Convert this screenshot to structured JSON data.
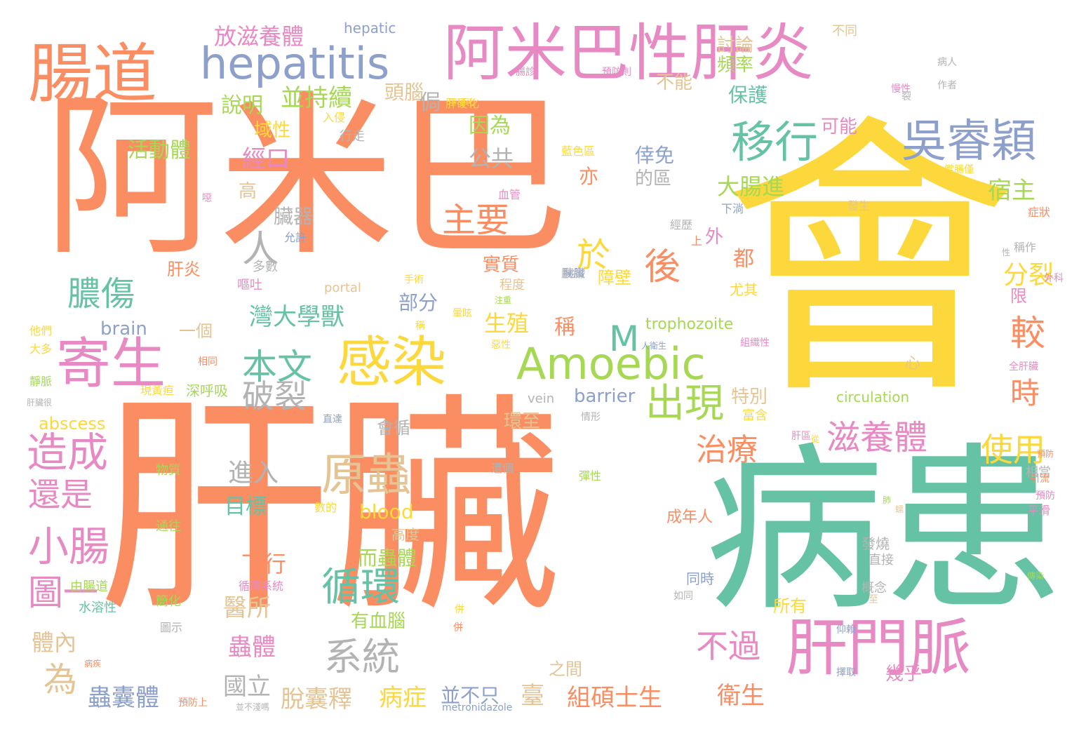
{
  "palette": {
    "orange": "#fb8d62",
    "yellow": "#fcd83c",
    "green": "#66c2a5",
    "pink": "#e78ac3",
    "blue": "#8da0cb",
    "lime": "#a6d854",
    "tan": "#e5c494",
    "gray": "#b3b3b3",
    "background": "#ffffff"
  },
  "words": [
    {
      "text": "阿米巴",
      "color": "orange"
    },
    {
      "text": "肝臟",
      "color": "orange"
    },
    {
      "text": "會",
      "color": "yellow"
    },
    {
      "text": "病患",
      "color": "green"
    },
    {
      "text": "阿米巴性肝炎",
      "color": "pink"
    },
    {
      "text": "腸道",
      "color": "orange"
    },
    {
      "text": "hepatitis",
      "color": "blue"
    },
    {
      "text": "寄生",
      "color": "pink"
    },
    {
      "text": "感染",
      "color": "yellow"
    },
    {
      "text": "Amoebic",
      "color": "lime"
    },
    {
      "text": "肝門脈",
      "color": "pink"
    },
    {
      "text": "吳睿穎",
      "color": "blue"
    },
    {
      "text": "移行",
      "color": "green"
    },
    {
      "text": "原蟲",
      "color": "tan"
    },
    {
      "text": "造成",
      "color": "pink"
    },
    {
      "text": "小腸",
      "color": "pink"
    },
    {
      "text": "循環",
      "color": "green"
    },
    {
      "text": "系統",
      "color": "gray"
    },
    {
      "text": "滋養體",
      "color": "pink"
    },
    {
      "text": "出現",
      "color": "lime"
    },
    {
      "text": "本文",
      "color": "green"
    },
    {
      "text": "主要",
      "color": "orange"
    },
    {
      "text": "膿傷",
      "color": "green"
    },
    {
      "text": "還是",
      "color": "pink"
    },
    {
      "text": "不過",
      "color": "pink"
    },
    {
      "text": "治療",
      "color": "orange"
    },
    {
      "text": "使用",
      "color": "yellow"
    },
    {
      "text": "破裂",
      "color": "gray"
    },
    {
      "text": "後",
      "color": "orange"
    },
    {
      "text": "於",
      "color": "yellow"
    },
    {
      "text": "人",
      "color": "gray"
    },
    {
      "text": "M",
      "color": "green"
    },
    {
      "text": "較",
      "color": "orange"
    },
    {
      "text": "時",
      "color": "orange"
    },
    {
      "text": "圖一",
      "color": "pink"
    },
    {
      "text": "為",
      "color": "tan"
    },
    {
      "text": "放滋養體",
      "color": "pink"
    },
    {
      "text": "hepatic",
      "color": "blue"
    },
    {
      "text": "並持續",
      "color": "lime"
    },
    {
      "text": "說明",
      "color": "lime"
    },
    {
      "text": "活動體",
      "color": "lime"
    },
    {
      "text": "經口",
      "color": "pink"
    },
    {
      "text": "公共",
      "color": "gray"
    },
    {
      "text": "頭腦",
      "color": "tan"
    },
    {
      "text": "因為",
      "color": "lime"
    },
    {
      "text": "討論",
      "color": "tan"
    },
    {
      "text": "頻率",
      "color": "lime"
    },
    {
      "text": "保護",
      "color": "green"
    },
    {
      "text": "不能",
      "color": "tan"
    },
    {
      "text": "可能",
      "color": "pink"
    },
    {
      "text": "大腸進",
      "color": "lime"
    },
    {
      "text": "宿主",
      "color": "lime"
    },
    {
      "text": "倖免",
      "color": "blue"
    },
    {
      "text": "的區",
      "color": "gray"
    },
    {
      "text": "亦",
      "color": "orange"
    },
    {
      "text": "分裂",
      "color": "yellow"
    },
    {
      "text": "臟器",
      "color": "gray"
    },
    {
      "text": "灣大學獸",
      "color": "green"
    },
    {
      "text": "部分",
      "color": "blue"
    },
    {
      "text": "生殖",
      "color": "yellow"
    },
    {
      "text": "稱",
      "color": "orange"
    },
    {
      "text": "肝炎",
      "color": "orange"
    },
    {
      "text": "brain",
      "color": "blue"
    },
    {
      "text": "一個",
      "color": "tan"
    },
    {
      "text": "trophozoite",
      "color": "lime"
    },
    {
      "text": "abscess",
      "color": "yellow"
    },
    {
      "text": "vein",
      "color": "gray"
    },
    {
      "text": "barrier",
      "color": "blue"
    },
    {
      "text": "circulation",
      "color": "lime"
    },
    {
      "text": "特別",
      "color": "tan"
    },
    {
      "text": "會循",
      "color": "gray"
    },
    {
      "text": "進入",
      "color": "gray"
    },
    {
      "text": "目標",
      "color": "green"
    },
    {
      "text": "blood",
      "color": "yellow"
    },
    {
      "text": "環至",
      "color": "tan"
    },
    {
      "text": "下行",
      "color": "orange"
    },
    {
      "text": "而蟲體",
      "color": "lime"
    },
    {
      "text": "醫所",
      "color": "tan"
    },
    {
      "text": "有血腦",
      "color": "lime"
    },
    {
      "text": "體內",
      "color": "tan"
    },
    {
      "text": "蟲體",
      "color": "pink"
    },
    {
      "text": "國立",
      "color": "gray"
    },
    {
      "text": "蟲囊體",
      "color": "blue"
    },
    {
      "text": "脫囊釋",
      "color": "tan"
    },
    {
      "text": "病症",
      "color": "yellow"
    },
    {
      "text": "並不只",
      "color": "blue"
    },
    {
      "text": "臺",
      "color": "tan"
    },
    {
      "text": "組碩士生",
      "color": "orange"
    },
    {
      "text": "衛生",
      "color": "orange"
    },
    {
      "text": "幾乎",
      "color": "pink"
    },
    {
      "text": "之間",
      "color": "tan"
    },
    {
      "text": "所有",
      "color": "yellow"
    },
    {
      "text": "都",
      "color": "orange"
    },
    {
      "text": "高",
      "color": "tan"
    },
    {
      "text": "外",
      "color": "pink"
    },
    {
      "text": "限",
      "color": "pink"
    },
    {
      "text": "實質",
      "color": "orange"
    },
    {
      "text": "障壁",
      "color": "yellow"
    },
    {
      "text": "程度",
      "color": "tan"
    },
    {
      "text": "尤其",
      "color": "yellow"
    },
    {
      "text": "多數",
      "color": "gray"
    },
    {
      "text": "portal",
      "color": "tan"
    },
    {
      "text": "域性",
      "color": "yellow"
    },
    {
      "text": "侷",
      "color": "gray"
    },
    {
      "text": "入侵",
      "color": "yellow"
    },
    {
      "text": "行走",
      "color": "gray"
    },
    {
      "text": "肝硬化",
      "color": "yellow"
    },
    {
      "text": "不同",
      "color": "tan"
    },
    {
      "text": "病人",
      "color": "gray"
    },
    {
      "text": "作者",
      "color": "gray"
    },
    {
      "text": "預防",
      "color": "pink"
    },
    {
      "text": "稱作",
      "color": "gray"
    },
    {
      "text": "症狀",
      "color": "orange"
    },
    {
      "text": "發生",
      "color": "tan"
    },
    {
      "text": "高度",
      "color": "tan"
    },
    {
      "text": "同時",
      "color": "blue"
    },
    {
      "text": "概念",
      "color": "gray"
    },
    {
      "text": "直接",
      "color": "gray"
    },
    {
      "text": "發燒",
      "color": "gray"
    },
    {
      "text": "相當",
      "color": "gray"
    },
    {
      "text": "平滑",
      "color": "pink"
    },
    {
      "text": "成年人",
      "color": "orange"
    },
    {
      "text": "富含",
      "color": "yellow"
    },
    {
      "text": "深呼吸",
      "color": "lime"
    },
    {
      "text": "現黃疸",
      "color": "yellow"
    },
    {
      "text": "物質",
      "color": "lime"
    },
    {
      "text": "通往",
      "color": "lime"
    },
    {
      "text": "由腸道",
      "color": "lime"
    },
    {
      "text": "水溶性",
      "color": "green"
    },
    {
      "text": "圖示",
      "color": "gray"
    },
    {
      "text": "簡化",
      "color": "lime"
    },
    {
      "text": "循環系統",
      "color": "pink"
    },
    {
      "text": "他們",
      "color": "yellow"
    },
    {
      "text": "大多",
      "color": "yellow"
    },
    {
      "text": "靜脈",
      "color": "lime"
    },
    {
      "text": "肝臟很",
      "color": "gray"
    },
    {
      "text": "metronidazole",
      "color": "blue"
    },
    {
      "text": "肝硬化",
      "color": "yellow"
    },
    {
      "text": "心",
      "color": "tan"
    },
    {
      "text": "胰臟",
      "color": "blue"
    },
    {
      "text": "相同",
      "color": "orange"
    },
    {
      "text": "手術",
      "color": "yellow"
    },
    {
      "text": "允許",
      "color": "blue"
    },
    {
      "text": "經歷",
      "color": "gray"
    },
    {
      "text": "下淌",
      "color": "blue"
    },
    {
      "text": "上",
      "color": "orange"
    },
    {
      "text": "彈性",
      "color": "lime"
    },
    {
      "text": "引流",
      "color": "orange"
    },
    {
      "text": "預防",
      "color": "orange"
    },
    {
      "text": "蠕",
      "color": "tan"
    },
    {
      "text": "肺",
      "color": "lime"
    },
    {
      "text": "併",
      "color": "yellow"
    },
    {
      "text": "腸診",
      "color": "pink"
    },
    {
      "text": "預防則",
      "color": "pink"
    },
    {
      "text": "慢性",
      "color": "pink"
    },
    {
      "text": "裂",
      "color": "gray"
    },
    {
      "text": "噁",
      "color": "pink"
    },
    {
      "text": "血管",
      "color": "pink"
    },
    {
      "text": "藍色區",
      "color": "yellow"
    },
    {
      "text": "惡性",
      "color": "yellow"
    },
    {
      "text": "全肝臟",
      "color": "pink"
    },
    {
      "text": "仰賴",
      "color": "blue"
    },
    {
      "text": "擇取",
      "color": "blue"
    },
    {
      "text": "直達",
      "color": "blue"
    },
    {
      "text": "情形",
      "color": "gray"
    },
    {
      "text": "還個",
      "color": "gray"
    },
    {
      "text": "數的",
      "color": "yellow"
    },
    {
      "text": "當腸僅",
      "color": "yellow"
    },
    {
      "text": "肝區",
      "color": "pink"
    },
    {
      "text": "組織性",
      "color": "pink"
    },
    {
      "text": "人衛生",
      "color": "blue"
    },
    {
      "text": "暈眩",
      "color": "yellow"
    },
    {
      "text": "注重",
      "color": "lime"
    },
    {
      "text": "嘔吐",
      "color": "pink"
    },
    {
      "text": "稱",
      "color": "yellow"
    },
    {
      "text": "腹痛",
      "color": "gray"
    },
    {
      "text": "如同",
      "color": "gray"
    },
    {
      "text": "病疾",
      "color": "orange"
    },
    {
      "text": "預防上",
      "color": "orange"
    },
    {
      "text": "從",
      "color": "yellow"
    },
    {
      "text": "併",
      "color": "orange"
    },
    {
      "text": "傳染",
      "color": "lime"
    },
    {
      "text": "外科",
      "color": "pink"
    },
    {
      "text": "性",
      "color": "gray"
    },
    {
      "text": "並不淺嗎",
      "color": "gray"
    },
    {
      "text": "至",
      "color": "tan"
    },
    {
      "text": "肝臟很",
      "color": "gray"
    }
  ]
}
